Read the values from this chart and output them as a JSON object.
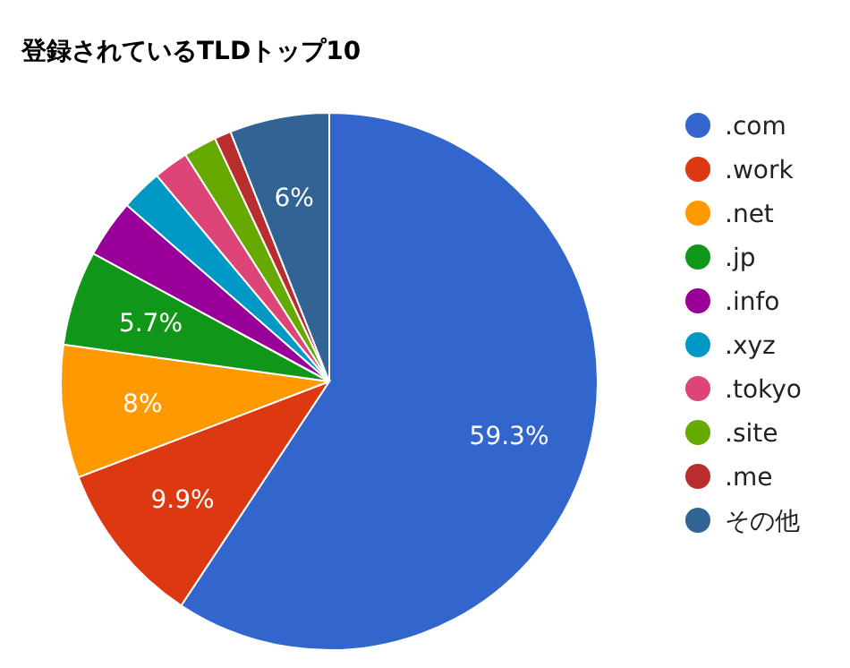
{
  "chart_data": {
    "type": "pie",
    "title": "登録されているTLDトップ10",
    "categories": [
      ".com",
      ".work",
      ".net",
      ".jp",
      ".info",
      ".xyz",
      ".tokyo",
      ".site",
      ".me",
      "その他"
    ],
    "values": [
      59.3,
      9.9,
      8,
      5.7,
      3.5,
      2.5,
      2.1,
      2.0,
      1.0,
      6
    ],
    "colors": [
      "#3366cc",
      "#dc3912",
      "#ff9900",
      "#109618",
      "#990099",
      "#0099c6",
      "#dd4477",
      "#66aa00",
      "#b82e2e",
      "#316395"
    ],
    "value_labels": [
      "59.3%",
      "9.9%",
      "8%",
      "5.7%",
      null,
      null,
      null,
      null,
      null,
      "6%"
    ],
    "legend": "right"
  }
}
